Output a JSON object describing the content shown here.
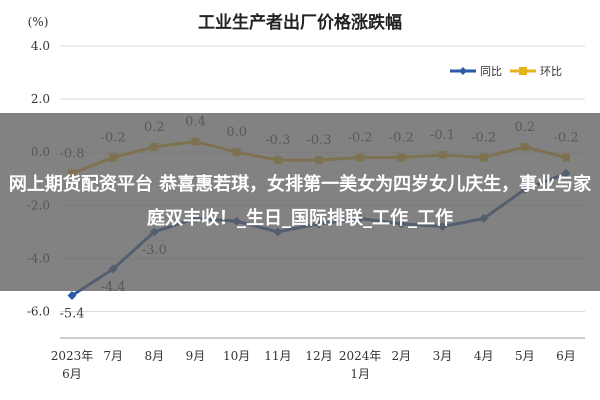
{
  "chart_data": {
    "type": "line",
    "title": "工业生产者出厂价格涨跌幅",
    "ylabel": "(%)",
    "ylim": [
      -7.0,
      4.0
    ],
    "yticks": [
      "4.0",
      "2.0",
      "0.0",
      "-2.0",
      "-4.0",
      "-6.0"
    ],
    "ytick_values": [
      4.0,
      2.0,
      0.0,
      -2.0,
      -4.0,
      -6.0
    ],
    "grid": true,
    "legend_position": "top-right",
    "categories": [
      [
        "2023年",
        "6月"
      ],
      [
        "7月"
      ],
      [
        "8月"
      ],
      [
        "9月"
      ],
      [
        "10月"
      ],
      [
        "11月"
      ],
      [
        "12月"
      ],
      [
        "2024年",
        "1月"
      ],
      [
        "2月"
      ],
      [
        "3月"
      ],
      [
        "4月"
      ],
      [
        "5月"
      ],
      [
        "6月"
      ]
    ],
    "series": [
      {
        "name": "同比",
        "color": "#2a5aa8",
        "values": [
          -5.4,
          -4.4,
          -3.0,
          -2.5,
          -2.6,
          -3.0,
          -2.7,
          -2.5,
          -2.7,
          -2.8,
          -2.5,
          -1.4,
          -0.8
        ],
        "labels": [
          "-5.4",
          "-4.4",
          "-3.0",
          "",
          "",
          "",
          "",
          "",
          "",
          "",
          "",
          "",
          ""
        ]
      },
      {
        "name": "环比",
        "color": "#e6b21c",
        "values": [
          -0.8,
          -0.2,
          0.2,
          0.4,
          0.0,
          -0.3,
          -0.3,
          -0.2,
          -0.2,
          -0.1,
          -0.2,
          0.2,
          -0.2
        ],
        "labels": [
          "-0.8",
          "-0.2",
          "0.2",
          "0.4",
          "0.0",
          "-0.3",
          "-0.3",
          "-0.2",
          "-0.2",
          "-0.1",
          "-0.2",
          "0.2",
          "-0.2"
        ]
      }
    ]
  },
  "overlay": {
    "text": "网上期货配资平台 恭喜惠若琪，女排第一美女为四岁女儿庆生，事业与家庭双丰收！_生日_国际排联_工作_工作"
  }
}
